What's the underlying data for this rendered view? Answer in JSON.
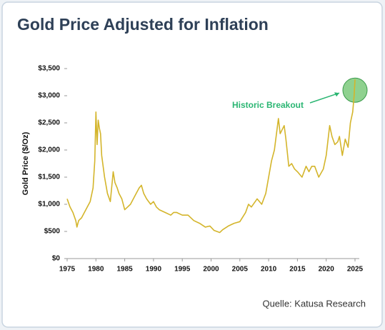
{
  "chart_data": {
    "type": "line",
    "title": "Gold Price Adjusted for Inflation",
    "y_label": "Gold Price ($/Oz)",
    "source": "Quelle: Katusa Research",
    "annotation": "Historic Breakout",
    "color": "#d4b52b",
    "annotation_color": "#2bb673",
    "x": [
      1975.0,
      1975.5,
      1976.0,
      1976.5,
      1976.7,
      1977.0,
      1977.5,
      1978.0,
      1978.5,
      1979.0,
      1979.5,
      1979.8,
      1980.0,
      1980.2,
      1980.4,
      1980.6,
      1980.8,
      1981.0,
      1981.5,
      1982.0,
      1982.5,
      1983.0,
      1983.3,
      1983.7,
      1984.0,
      1984.5,
      1985.0,
      1985.5,
      1986.0,
      1986.5,
      1987.0,
      1987.5,
      1987.9,
      1988.3,
      1988.8,
      1989.5,
      1990.0,
      1990.5,
      1991.0,
      1992.0,
      1993.0,
      1993.5,
      1994.0,
      1995.0,
      1996.0,
      1997.0,
      1998.0,
      1999.0,
      1999.8,
      2000.5,
      2001.0,
      2001.5,
      2002.0,
      2003.0,
      2004.0,
      2005.0,
      2006.0,
      2006.5,
      2007.0,
      2008.0,
      2008.8,
      2009.5,
      2010.0,
      2010.5,
      2011.0,
      2011.6,
      2011.7,
      2012.0,
      2012.7,
      2013.0,
      2013.5,
      2014.0,
      2014.5,
      2015.0,
      2015.8,
      2016.5,
      2017.0,
      2017.5,
      2018.0,
      2018.7,
      2019.5,
      2020.0,
      2020.6,
      2021.0,
      2021.5,
      2022.0,
      2022.3,
      2022.8,
      2023.3,
      2023.8,
      2024.2,
      2024.6,
      2024.85,
      2025.0
    ],
    "values": [
      1100,
      950,
      850,
      700,
      580,
      700,
      750,
      850,
      950,
      1050,
      1300,
      1800,
      2700,
      2100,
      2550,
      2400,
      2300,
      1900,
      1500,
      1200,
      1050,
      1600,
      1400,
      1300,
      1200,
      1100,
      900,
      950,
      1000,
      1100,
      1200,
      1300,
      1350,
      1200,
      1100,
      1000,
      1050,
      950,
      900,
      850,
      800,
      850,
      850,
      800,
      800,
      700,
      650,
      580,
      600,
      520,
      500,
      480,
      530,
      600,
      650,
      680,
      850,
      1000,
      950,
      1100,
      1000,
      1200,
      1500,
      1800,
      2000,
      2500,
      2580,
      2300,
      2450,
      2200,
      1700,
      1750,
      1650,
      1600,
      1500,
      1700,
      1600,
      1700,
      1700,
      1500,
      1650,
      1900,
      2450,
      2250,
      2100,
      2150,
      2250,
      1900,
      2200,
      2050,
      2500,
      2700,
      3000,
      3300
    ],
    "xlim": [
      1975,
      2025
    ],
    "xticks": [
      1975,
      1980,
      1985,
      1990,
      1995,
      2000,
      2005,
      2010,
      2015,
      2020,
      2025
    ],
    "ylim": [
      0,
      3500
    ],
    "yticks": [
      {
        "value": 0,
        "label": "$0"
      },
      {
        "value": 500,
        "label": "$500"
      },
      {
        "value": 1000,
        "label": "$1,000"
      },
      {
        "value": 1500,
        "label": "$1,500"
      },
      {
        "value": 2000,
        "label": "$2,000"
      },
      {
        "value": 2500,
        "label": "$2,500"
      },
      {
        "value": 3000,
        "label": "$3,000"
      },
      {
        "value": 3500,
        "label": "$3,500"
      }
    ],
    "grid": false
  }
}
